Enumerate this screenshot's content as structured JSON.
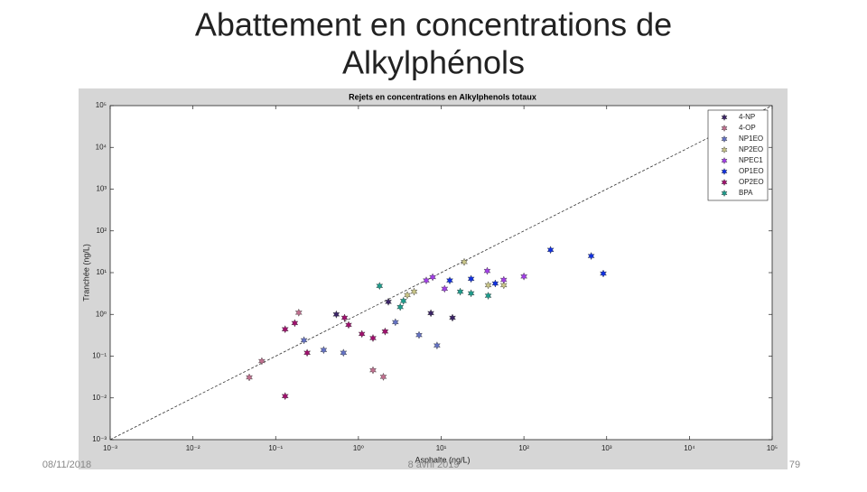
{
  "slide": {
    "title_line1": "Abattement en concentrations de",
    "title_line2": "Alkylphénols",
    "date": "08/11/2018",
    "footer": "8 avril 2019",
    "page_number": "79"
  },
  "chart_data": {
    "type": "scatter",
    "title": "Rejets en concentrations en Alkylphenols totaux",
    "x_label": "Asphalte (ng/L)",
    "y_label": "Tranchée (ng/L)",
    "xscale": "log",
    "yscale": "log",
    "grid": false,
    "legend": "top-right",
    "identity_line": true,
    "xlim": [
      0.001,
      100000
    ],
    "ylim": [
      0.001,
      100000
    ],
    "xticks": [
      {
        "value": 0.001,
        "label": "10⁻³"
      },
      {
        "value": 0.01,
        "label": "10⁻²"
      },
      {
        "value": 0.1,
        "label": "10⁻¹"
      },
      {
        "value": 1,
        "label": "10⁰"
      },
      {
        "value": 10,
        "label": "10¹"
      },
      {
        "value": 100,
        "label": "10²"
      },
      {
        "value": 1000,
        "label": "10³"
      },
      {
        "value": 10000,
        "label": "10⁴"
      },
      {
        "value": 100000,
        "label": "10⁵"
      }
    ],
    "yticks": [
      {
        "value": 0.001,
        "label": "10⁻³"
      },
      {
        "value": 0.01,
        "label": "10⁻²"
      },
      {
        "value": 0.1,
        "label": "10⁻¹"
      },
      {
        "value": 1,
        "label": "10⁰"
      },
      {
        "value": 10,
        "label": "10¹"
      },
      {
        "value": 100,
        "label": "10²"
      },
      {
        "value": 1000,
        "label": "10³"
      },
      {
        "value": 10000,
        "label": "10⁴"
      },
      {
        "value": 100000,
        "label": "10⁵"
      }
    ],
    "series": [
      {
        "name": "4-NP",
        "color": "#3b2466",
        "x": [
          0.54,
          2.3,
          7.5,
          13.7
        ],
        "values": [
          1.0,
          2.0,
          1.07,
          0.83
        ]
      },
      {
        "name": "4-OP",
        "color": "#c0708f",
        "x": [
          0.048,
          0.068,
          0.19,
          1.5,
          2.0
        ],
        "values": [
          0.031,
          0.076,
          1.1,
          0.046,
          0.032
        ]
      },
      {
        "name": "NP1EO",
        "color": "#6472c4",
        "x": [
          0.22,
          0.38,
          0.66,
          2.8,
          5.4,
          8.9
        ],
        "values": [
          0.24,
          0.14,
          0.12,
          0.65,
          0.32,
          0.18
        ]
      },
      {
        "name": "NP2EO",
        "color": "#c8c488",
        "x": [
          3.9,
          4.7,
          19,
          37,
          57
        ],
        "values": [
          2.9,
          3.5,
          18,
          5,
          5
        ]
      },
      {
        "name": "NPEC1",
        "color": "#a23fe6",
        "x": [
          6.6,
          7.9,
          11,
          36,
          57,
          100
        ],
        "values": [
          6.5,
          7.8,
          4.1,
          11,
          6.7,
          8.1
        ]
      },
      {
        "name": "OP1EO",
        "color": "#1030e0",
        "x": [
          12.7,
          23,
          45,
          210,
          650,
          910
        ],
        "values": [
          6.5,
          7.1,
          5.5,
          35,
          25,
          9.5
        ]
      },
      {
        "name": "OP2EO",
        "color": "#a0106e",
        "x": [
          0.13,
          0.13,
          0.17,
          0.24,
          0.68,
          0.76,
          1.1,
          1.5,
          2.1
        ],
        "values": [
          0.011,
          0.44,
          0.62,
          0.12,
          0.83,
          0.56,
          0.34,
          0.27,
          0.39
        ]
      },
      {
        "name": "BPA",
        "color": "#1e9c8c",
        "x": [
          1.8,
          3.5,
          3.2,
          17,
          23,
          37
        ],
        "values": [
          4.8,
          2.1,
          1.5,
          3.5,
          3.2,
          2.8
        ]
      }
    ]
  }
}
